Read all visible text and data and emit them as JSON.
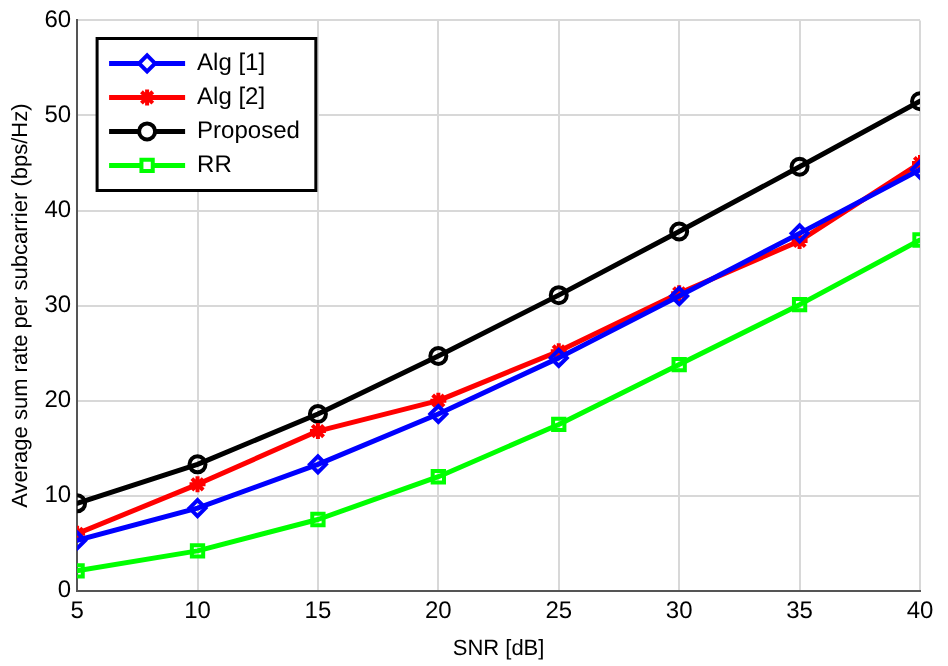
{
  "chart_data": {
    "type": "line",
    "xlabel": "SNR [dB]",
    "ylabel": "Average sum rate per subcarrier (bps/Hz)",
    "x": [
      5,
      10,
      15,
      20,
      25,
      30,
      35,
      40
    ],
    "xlim": [
      5,
      40
    ],
    "xticks": [
      5,
      10,
      15,
      20,
      25,
      30,
      35,
      40
    ],
    "ylim": [
      0,
      60
    ],
    "yticks": [
      0,
      10,
      20,
      30,
      40,
      50,
      60
    ],
    "grid": true,
    "legend": "top left",
    "line_style": "solid",
    "series": [
      {
        "name": "Alg [1]",
        "color": "#0000ff",
        "marker": "diamond",
        "values": [
          5.3,
          8.7,
          13.3,
          18.6,
          24.5,
          31,
          37.6,
          44.3
        ]
      },
      {
        "name": "Alg [2]",
        "color": "#ff0000",
        "marker": "cross",
        "values": [
          6,
          11.2,
          16.8,
          20,
          25.2,
          31.3,
          36.8,
          45
        ]
      },
      {
        "name": "Proposed",
        "color": "#000000",
        "marker": "circle",
        "values": [
          9.2,
          13.3,
          18.6,
          24.7,
          31.1,
          37.8,
          44.6,
          51.5
        ]
      },
      {
        "name": "RR",
        "color": "#00ff00",
        "marker": "square",
        "values": [
          2.1,
          4.2,
          7.5,
          12,
          17.5,
          23.8,
          30.1,
          36.9
        ]
      }
    ]
  }
}
